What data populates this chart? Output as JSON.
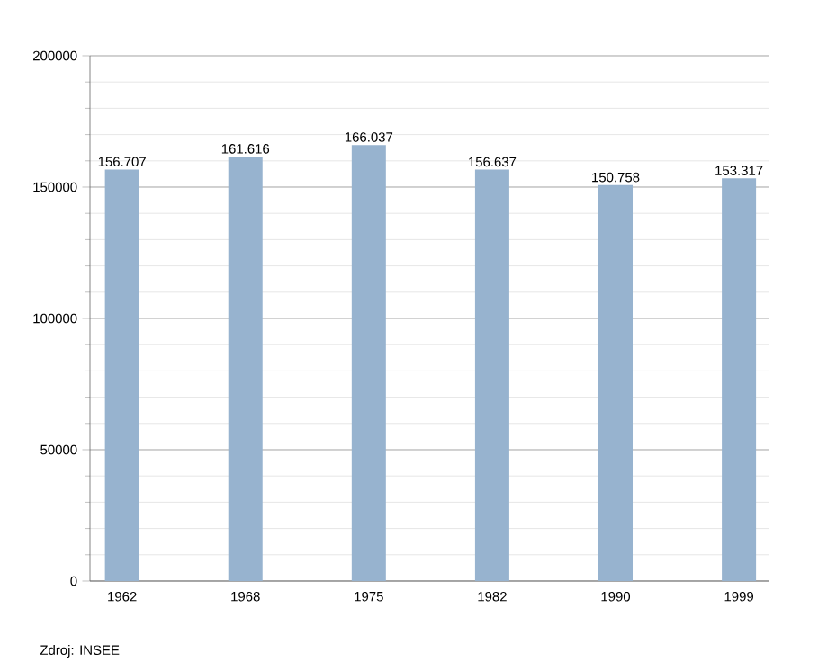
{
  "chart_data": {
    "type": "bar",
    "categories": [
      "1962",
      "1968",
      "1975",
      "1982",
      "1990",
      "1999"
    ],
    "values": [
      156707,
      161616,
      166037,
      156637,
      150758,
      153317
    ],
    "value_labels": [
      "156.707",
      "161.616",
      "166.037",
      "156.637",
      "150.758",
      "153.317"
    ],
    "color": "#97b3cf",
    "ylim": [
      0,
      200000
    ],
    "yticks": [
      0,
      50000,
      100000,
      150000,
      200000
    ],
    "grid": "y",
    "annotations": [
      "Zdroj: INSEE"
    ]
  }
}
